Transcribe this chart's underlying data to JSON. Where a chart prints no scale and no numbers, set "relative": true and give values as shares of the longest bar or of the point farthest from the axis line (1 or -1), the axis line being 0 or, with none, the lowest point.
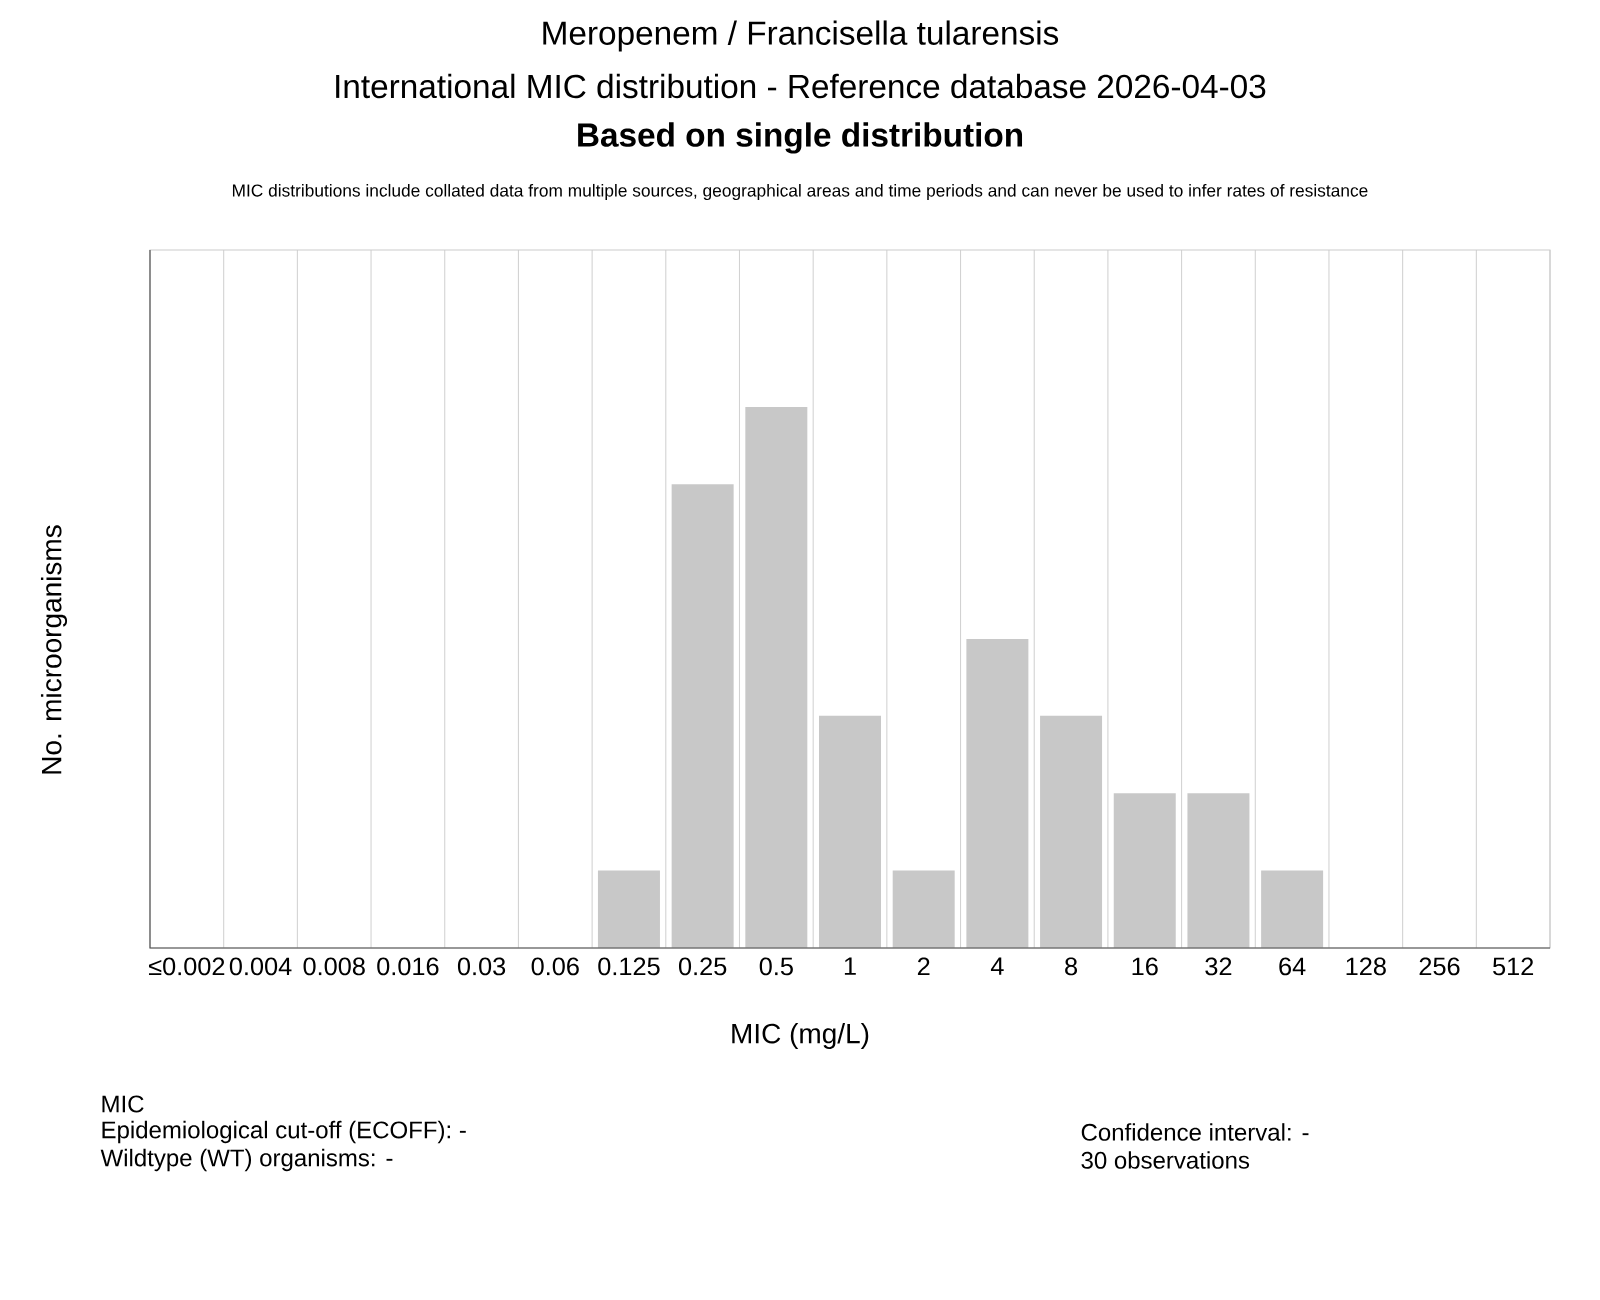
{
  "chart_data": {
    "type": "bar",
    "title": "Meropenem / Francisella tularensis",
    "subtitle": "International MIC distribution - Reference database 2026-04-03",
    "xlabel": "MIC (mg/L)",
    "ylabel": "No. microorganisms",
    "annotations": [
      "**Based on single distribution**",
      "MIC distributions include collated data from multiple sources, geographical areas and time periods and can never be used to infer rates of resistance",
      "MIC",
      "Epidemiological cut-off (ECOFF): -",
      "Wildtype (WT) organisms:  -",
      "Confidence interval: -",
      "30 observations"
    ],
    "categories": [
      "≤0.002",
      "0.004",
      "0.008",
      "0.016",
      "0.03",
      "0.06",
      "0.125",
      "0.25",
      "0.5",
      "1",
      "2",
      "4",
      "8",
      "16",
      "32",
      "64",
      "128",
      "256",
      "512"
    ],
    "values": [
      0,
      0,
      0,
      0,
      0,
      0,
      0.143,
      0.857,
      1,
      0.429,
      0.143,
      0.571,
      0.429,
      0.286,
      0.286,
      0.143,
      0,
      0,
      0
    ],
    "color": "#c8c8c8",
    "relative": true,
    "grid": "x"
  }
}
